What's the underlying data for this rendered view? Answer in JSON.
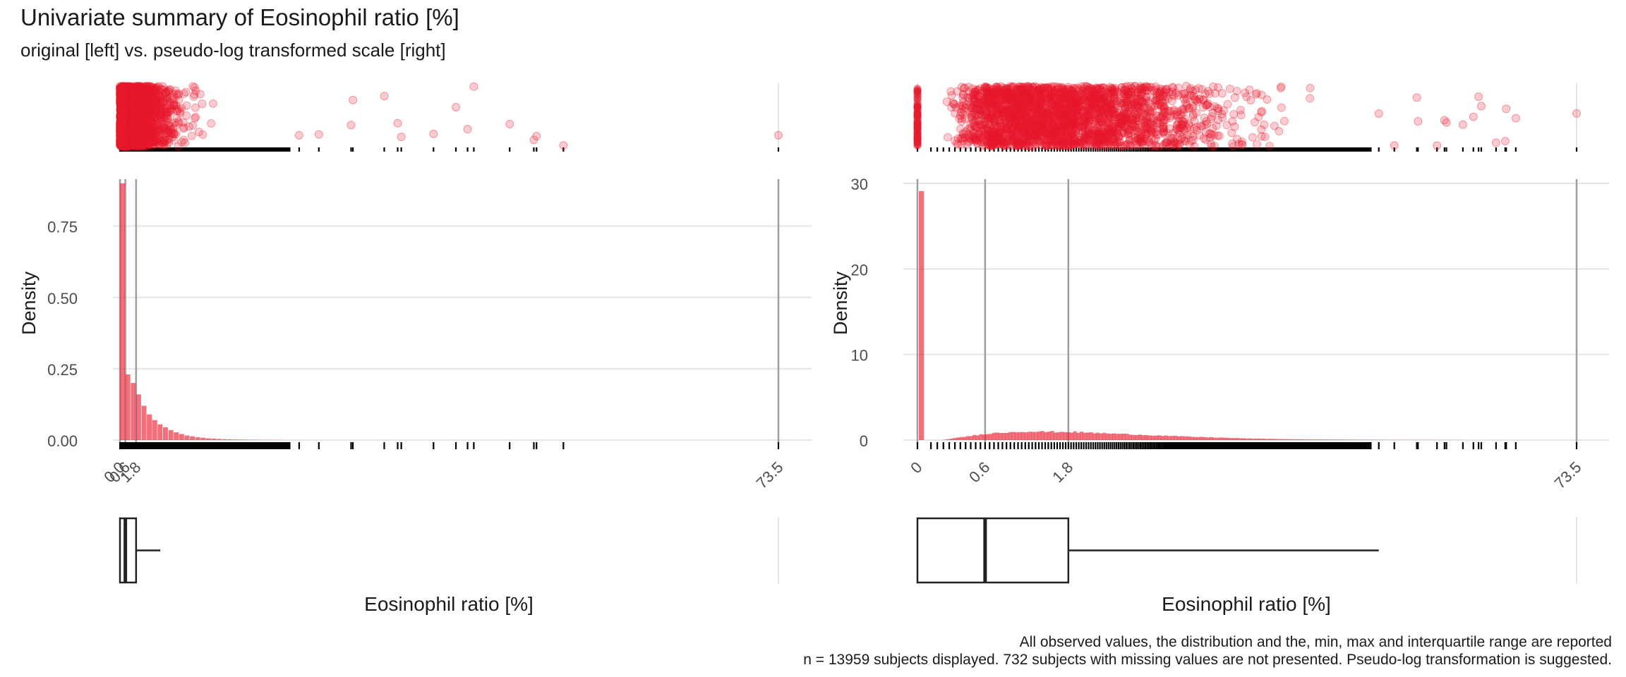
{
  "title": "Univariate summary of Eosinophil ratio [%]",
  "subtitle": "original [left] vs. pseudo-log transformed scale [right]",
  "caption_line1": "All observed values, the distribution and the, min, max and interquartile range are reported",
  "caption_line2": "n = 13959 subjects displayed. 732 subjects with missing values are not presented. Pseudo-log transformation is suggested.",
  "colors": {
    "fill": "#E8192C",
    "box": "#222222",
    "grid": "#E5E5E5",
    "ref": "#9E9E9E"
  },
  "chart_data": [
    {
      "type": "bar",
      "panel": "original",
      "xlabel": "Eosinophil ratio [%]",
      "ylabel": "Density",
      "xlim": [
        0,
        73.5
      ],
      "ylim": [
        0,
        0.9
      ],
      "x_ticks": [
        {
          "value": 0,
          "label": "0.0"
        },
        {
          "value": 0.6,
          "label": "0.6"
        },
        {
          "value": 1.8,
          "label": "1.8"
        },
        {
          "value": 73.5,
          "label": "73.5"
        }
      ],
      "y_ticks": [
        {
          "value": 0,
          "label": "0.00"
        },
        {
          "value": 0.25,
          "label": "0.25"
        },
        {
          "value": 0.5,
          "label": "0.50"
        },
        {
          "value": 0.75,
          "label": "0.75"
        }
      ],
      "reference_lines": [
        0,
        0.6,
        1.8,
        73.5
      ],
      "histogram": {
        "bin_width": 0.6,
        "bin_start": 0,
        "density": [
          0.9,
          0.23,
          0.2,
          0.16,
          0.12,
          0.09,
          0.07,
          0.055,
          0.045,
          0.035,
          0.027,
          0.021,
          0.016,
          0.013,
          0.01,
          0.008,
          0.006,
          0.005,
          0.004,
          0.003,
          0.0025,
          0.002,
          0.0015,
          0.0012,
          0.001,
          0.0008,
          0.0006,
          0.0005,
          0.0004,
          0.0003
        ]
      },
      "box": {
        "min": 0,
        "q1": 0,
        "median": 0.6,
        "q3": 1.8,
        "whisker_high": 4.5,
        "max": 73.5
      },
      "notable_values": [
        20.0,
        22.2,
        25.8,
        26.0,
        29.5,
        31.0,
        31.4,
        35.0,
        37.5,
        38.8,
        39.5,
        43.5,
        46.2,
        46.5,
        49.5,
        73.5
      ]
    },
    {
      "type": "bar",
      "panel": "pseudo-log",
      "xlabel": "Eosinophil ratio [%]",
      "ylabel": "Density",
      "xlim": [
        0,
        73.5
      ],
      "ylim": [
        0,
        30
      ],
      "x_ticks": [
        {
          "value": 0,
          "label": "0"
        },
        {
          "value": 0.6,
          "label": "0.6"
        },
        {
          "value": 1.8,
          "label": "1.8"
        },
        {
          "value": 73.5,
          "label": "73.5"
        }
      ],
      "y_ticks": [
        {
          "value": 0,
          "label": "0"
        },
        {
          "value": 10,
          "label": "10"
        },
        {
          "value": 20,
          "label": "20"
        },
        {
          "value": 30,
          "label": "30"
        }
      ],
      "reference_lines": [
        0,
        0.6,
        1.8,
        73.5
      ],
      "box": {
        "min": 0,
        "q1": 0,
        "median": 0.6,
        "q3": 1.8,
        "whisker_high": 20,
        "max": 73.5
      },
      "zero_bar_density": 29.1,
      "continuous_density": [
        {
          "x": 0.2,
          "y": 0.05
        },
        {
          "x": 0.35,
          "y": 0.35
        },
        {
          "x": 0.6,
          "y": 0.75
        },
        {
          "x": 1.0,
          "y": 1.0
        },
        {
          "x": 1.8,
          "y": 0.95
        },
        {
          "x": 3.0,
          "y": 0.7
        },
        {
          "x": 5.0,
          "y": 0.4
        },
        {
          "x": 8.0,
          "y": 0.18
        },
        {
          "x": 12.0,
          "y": 0.07
        },
        {
          "x": 20.0,
          "y": 0.02
        },
        {
          "x": 35.0,
          "y": 0.005
        }
      ],
      "notable_values": [
        20.0,
        22.2,
        25.8,
        26.0,
        29.5,
        31.0,
        31.4,
        35.0,
        37.5,
        38.8,
        39.5,
        43.5,
        46.2,
        46.5,
        49.5,
        73.5
      ]
    }
  ]
}
